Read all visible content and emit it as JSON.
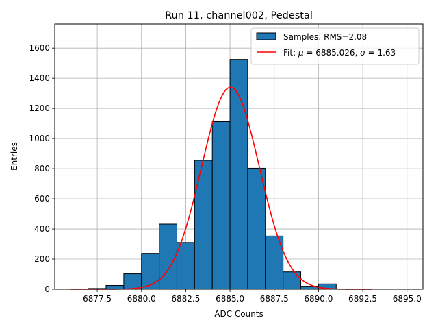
{
  "chart_data": {
    "type": "bar",
    "title": "Run 11, channel002, Pedestal",
    "xlabel": "ADC Counts",
    "ylabel": "Entries",
    "xlim": [
      6875.1,
      6895.9
    ],
    "ylim": [
      0,
      1760
    ],
    "xticks": [
      6877.5,
      6880.0,
      6882.5,
      6885.0,
      6887.5,
      6890.0,
      6892.5,
      6895.0
    ],
    "xtick_labels": [
      "6877.5",
      "6880.0",
      "6882.5",
      "6885.0",
      "6887.5",
      "6890.0",
      "6892.5",
      "6895.0"
    ],
    "yticks": [
      0,
      200,
      400,
      600,
      800,
      1000,
      1200,
      1400,
      1600
    ],
    "ytick_labels": [
      "0",
      "200",
      "400",
      "600",
      "800",
      "1000",
      "1200",
      "1400",
      "1600"
    ],
    "grid": true,
    "legend_position": "top-right",
    "histogram": {
      "name": "Samples: RMS=2.08",
      "bin_edges": [
        6877,
        6878,
        6879,
        6880,
        6881,
        6882,
        6883,
        6884,
        6885,
        6886,
        6887,
        6888,
        6889,
        6890,
        6891
      ],
      "values": [
        5,
        25,
        102,
        238,
        432,
        310,
        855,
        1112,
        1525,
        803,
        353,
        115,
        20,
        35
      ],
      "color": "#1f77b4",
      "edge_color": "#000000"
    },
    "fit": {
      "name_prefix": "Fit: ",
      "name_mu": "μ",
      "name_mid": " = 6885.026, ",
      "name_sigma": "σ",
      "name_end": " = 1.63",
      "mu": 6885.026,
      "sigma": 1.63,
      "amplitude": 1340,
      "x_range": [
        6876,
        6893
      ],
      "color": "#ff0000"
    }
  }
}
